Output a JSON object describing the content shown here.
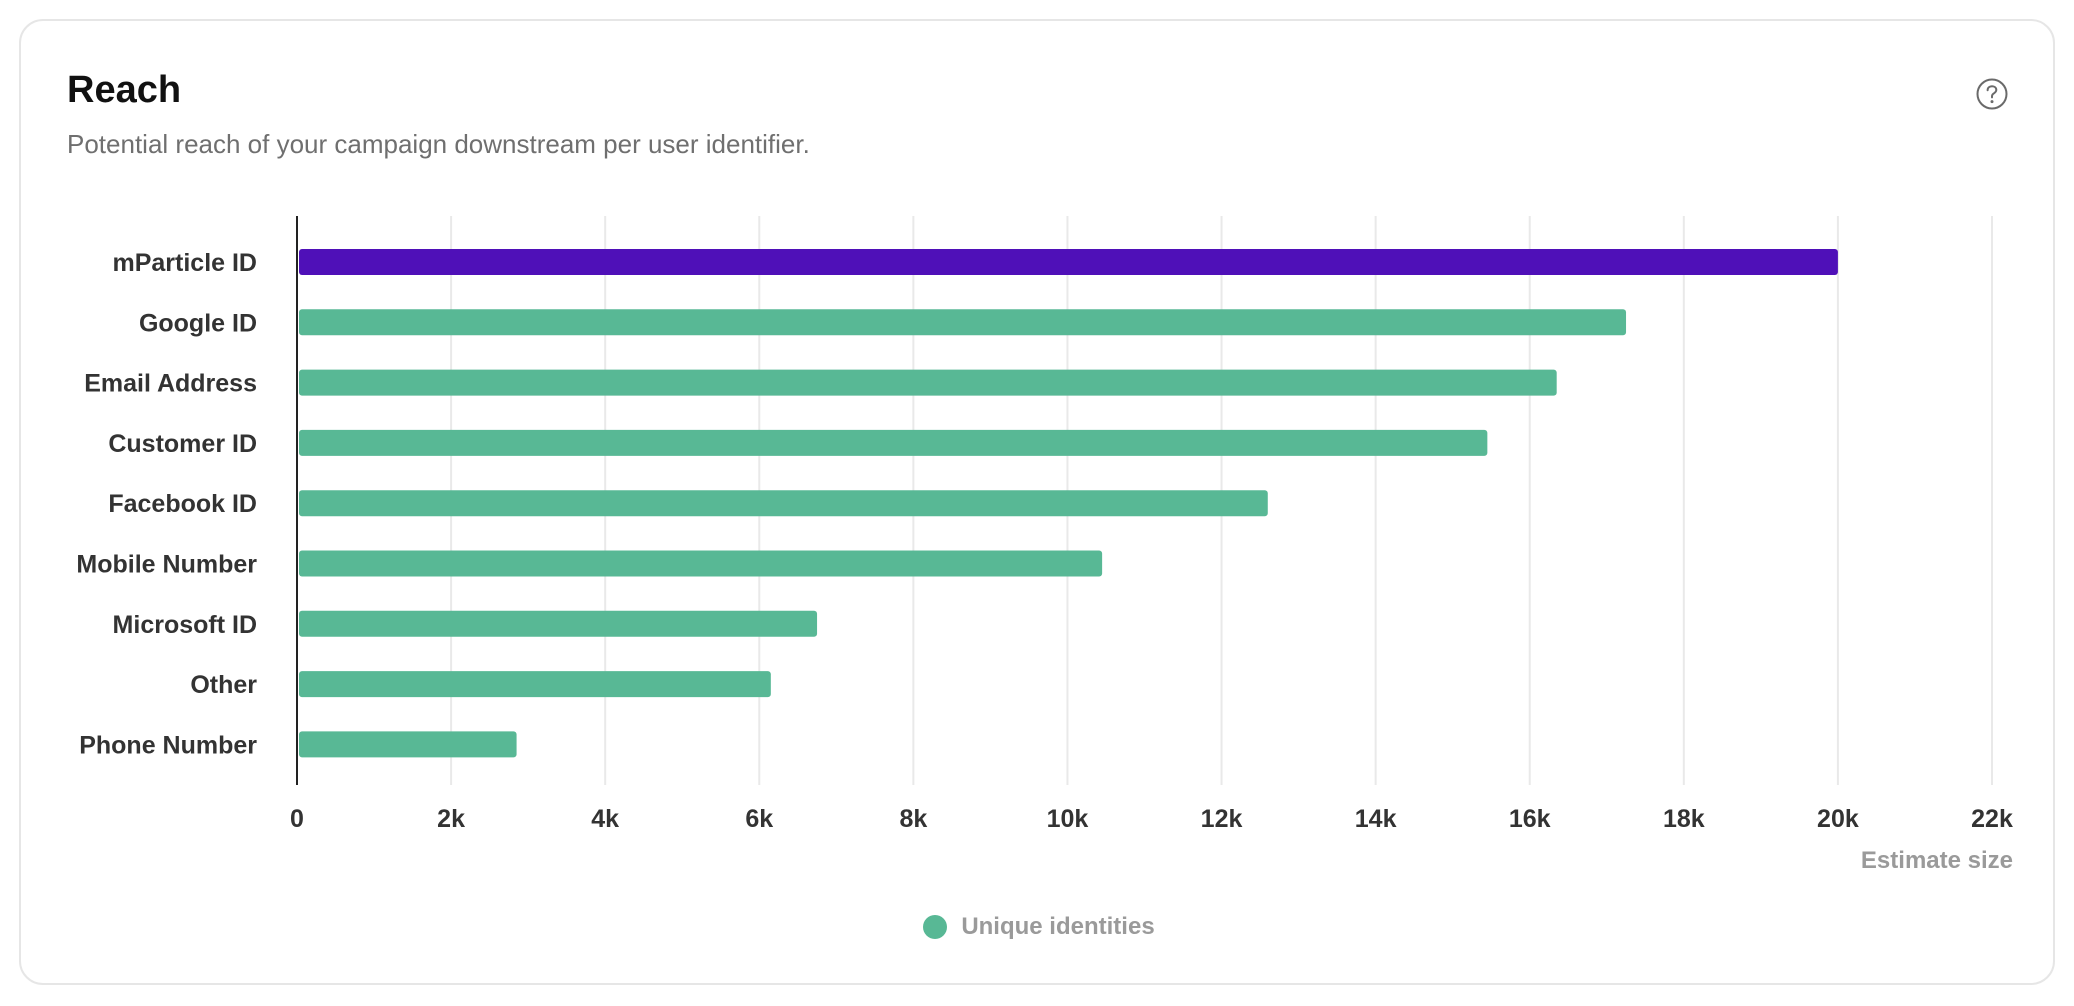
{
  "card": {
    "title": "Reach",
    "subtitle": "Potential reach of your campaign downstream per user identifier.",
    "help_icon": "question-circle-icon"
  },
  "colors": {
    "accent": "#4f10b8",
    "series": "#58b895",
    "axis": "#222222",
    "grid": "#e9e9e9",
    "tick_text": "#333333",
    "muted_text": "#9a9a9a"
  },
  "chart_data": {
    "type": "bar",
    "orientation": "horizontal",
    "categories": [
      "mParticle ID",
      "Google ID",
      "Email Address",
      "Customer ID",
      "Facebook ID",
      "Mobile Number",
      "Microsoft ID",
      "Other",
      "Phone Number"
    ],
    "series": [
      {
        "name": "Unique identities",
        "values": [
          20000,
          17250,
          16350,
          15450,
          12600,
          10450,
          6750,
          6150,
          2850
        ]
      }
    ],
    "highlight": {
      "category": "mParticle ID",
      "color": "#4f10b8"
    },
    "xlabel": "Estimate size",
    "ylabel": "",
    "xlim": [
      0,
      22000
    ],
    "xticks": [
      0,
      2000,
      4000,
      6000,
      8000,
      10000,
      12000,
      14000,
      16000,
      18000,
      20000,
      22000
    ],
    "xtick_labels": [
      "0",
      "2k",
      "4k",
      "6k",
      "8k",
      "10k",
      "12k",
      "14k",
      "16k",
      "18k",
      "20k",
      "22k"
    ],
    "grid": "vertical",
    "legend": "bottom-center"
  }
}
